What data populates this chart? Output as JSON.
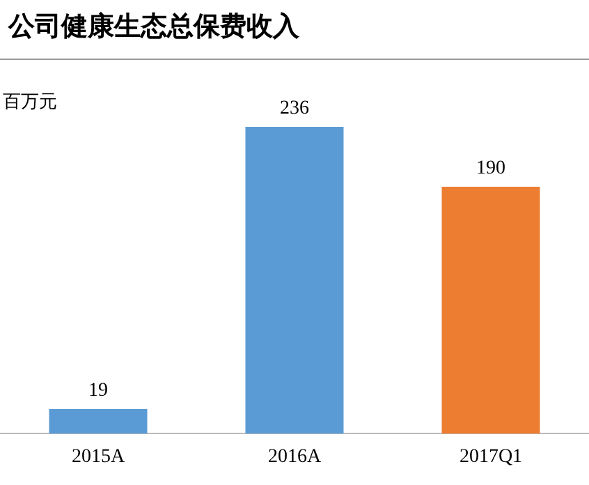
{
  "chart_data": {
    "type": "bar",
    "title": "公司健康生态总保费收入",
    "ylabel": "百万元",
    "categories": [
      "2015A",
      "2016A",
      "2017Q1"
    ],
    "values": [
      19,
      236,
      190
    ],
    "colors": [
      "#5b9bd5",
      "#5b9bd5",
      "#ed7d31"
    ],
    "data_labels": true,
    "grid": false,
    "legend": false,
    "tick_labels": "x"
  }
}
